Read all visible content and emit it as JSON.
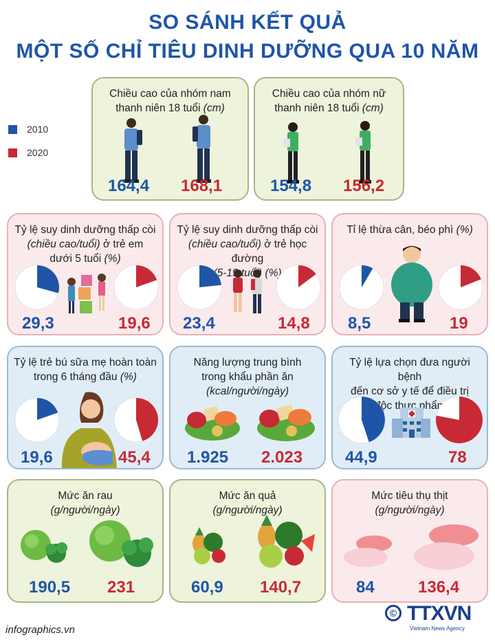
{
  "title": {
    "line1": "SO SÁNH KẾT QUẢ",
    "line2": "MỘT SỐ CHỈ TIÊU DINH DƯỠNG QUA 10 NĂM"
  },
  "legend": [
    {
      "label": "2010",
      "color": "#1f55a8"
    },
    {
      "label": "2020",
      "color": "#c72a35"
    }
  ],
  "colors": {
    "y2010": "#1f55a8",
    "y2020": "#c72a35"
  },
  "cards": {
    "male_height": {
      "title": "Chiều cao của nhóm nam",
      "title2": "thanh niên 18 tuổi",
      "unit": "(cm)",
      "v2010": "164,4",
      "v2020": "168,1"
    },
    "female_height": {
      "title": "Chiều cao của nhóm nữ",
      "title2": "thanh niên 18 tuổi",
      "unit": "(cm)",
      "v2010": "154,8",
      "v2020": "156,2"
    },
    "stunting_u5": {
      "title": "Tỷ lệ suy dinh dưỡng thấp còi",
      "sub": "(chiều cao/tuổi)",
      "title2": "ở trẻ em",
      "title3": "dưới 5 tuổi",
      "unit": "(%)",
      "v2010": "29,3",
      "v2020": "19,6",
      "p2010": 29.3,
      "p2020": 19.6
    },
    "stunting_school": {
      "title": "Tỷ lệ suy dinh dưỡng thấp còi",
      "sub": "(chiều cao/tuổi)",
      "title2": "ở trẻ học đường",
      "title3": "(5-19 tuổi)",
      "unit": "(%)",
      "v2010": "23,4",
      "v2020": "14,8",
      "p2010": 23.4,
      "p2020": 14.8
    },
    "overweight": {
      "title": "Tỉ lệ thừa cân, béo phì",
      "unit": "(%)",
      "v2010": "8,5",
      "v2020": "19",
      "p2010": 8.5,
      "p2020": 19
    },
    "breastfeeding": {
      "title": "Tỷ lệ trẻ bú sữa mẹ hoàn toàn",
      "title2": "trong 6 tháng đầu",
      "unit": "(%)",
      "v2010": "19,6",
      "v2020": "45,4",
      "p2010": 19.6,
      "p2020": 45.4
    },
    "energy": {
      "title": "Năng lượng trung bình",
      "title2": "trong khẩu phần ăn",
      "unit": "(kcal/người/ngày)",
      "v2010": "1.925",
      "v2020": "2.023"
    },
    "poisoning": {
      "title": "Tỷ lệ lựa chọn đưa người bệnh",
      "title2": "đến cơ sở y tế để điều trị",
      "title3": "ngộ độc thực phẩm",
      "unit": "(%)",
      "v2010": "44,9",
      "v2020": "78",
      "p2010": 44.9,
      "p2020": 78
    },
    "vegetables": {
      "title": "Mức ăn rau",
      "unit": "(g/người/ngày)",
      "v2010": "190,5",
      "v2020": "231"
    },
    "fruit": {
      "title": "Mức ăn quả",
      "unit": "(g/người/ngày)",
      "v2010": "60,9",
      "v2020": "140,7"
    },
    "meat": {
      "title": "Mức tiêu thụ thịt",
      "unit": "(g/người/ngày)",
      "v2010": "84",
      "v2020": "136,4"
    }
  },
  "footer": {
    "site": "infographics.vn",
    "copyright": "©",
    "logo": "TTXVN",
    "logo_sub": "Vietnam News Agency"
  }
}
